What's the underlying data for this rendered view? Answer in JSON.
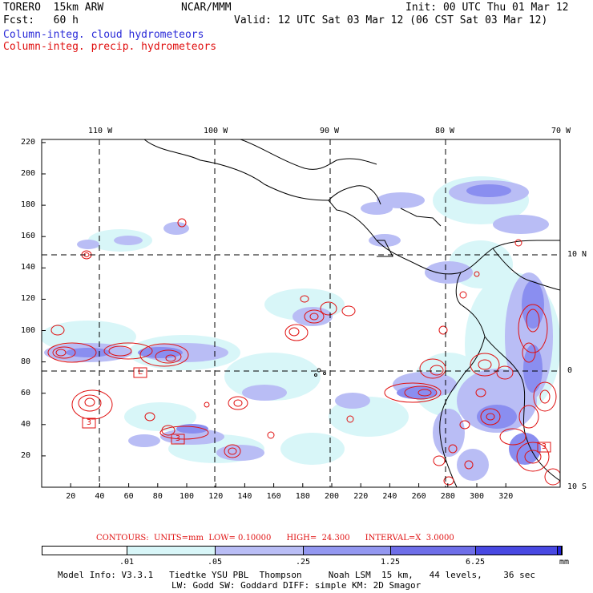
{
  "header": {
    "model": "TORERO  15km ARW",
    "org": "NCAR/MMM",
    "init": "Init: 00 UTC Thu 01 Mar 12",
    "fcst": "Fcst:   60 h",
    "valid": "Valid: 12 UTC Sat 03 Mar 12 (06 CST Sat 03 Mar 12)",
    "field_cloud": "Column-integ. cloud hydrometeors",
    "field_precip": "Column-integ. precip. hydrometeors",
    "cloud_color": "#2a2ad8",
    "precip_color": "#e01010"
  },
  "map": {
    "lon_labels": [
      "110 W",
      "100 W",
      "90 W",
      "80 W",
      "70 W"
    ],
    "lat_labels": [
      "10 N",
      "0",
      "10 S"
    ],
    "y_ticks": [
      "20",
      "40",
      "60",
      "80",
      "100",
      "120",
      "140",
      "160",
      "180",
      "200",
      "220"
    ],
    "x_ticks": [
      "20",
      "40",
      "60",
      "80",
      "100",
      "120",
      "140",
      "160",
      "180",
      "200",
      "220",
      "240",
      "260",
      "280",
      "300",
      "320"
    ],
    "box_labels": [
      "L",
      "3",
      "3",
      "3"
    ]
  },
  "contours": {
    "caption": "CONTOURS:  UNITS=mm  LOW= 0.10000      HIGH=  24.300      INTERVAL=X  3.0000"
  },
  "colorbar": {
    "labels": [
      ".01",
      ".05",
      ".25",
      "1.25",
      "6.25",
      "mm"
    ],
    "colors": [
      "#ffffff",
      "#d8f6f8",
      "#b9bdf5",
      "#9397f0",
      "#6e6ee8",
      "#4848e2",
      "#2222d8"
    ]
  },
  "footer": {
    "line1": "Model Info: V3.3.1   Tiedtke YSU PBL  Thompson     Noah LSM  15 km,   44 levels,    36 sec",
    "line2": "LW: Godd SW: Goddard DIFF: simple KM: 2D Smagor"
  }
}
